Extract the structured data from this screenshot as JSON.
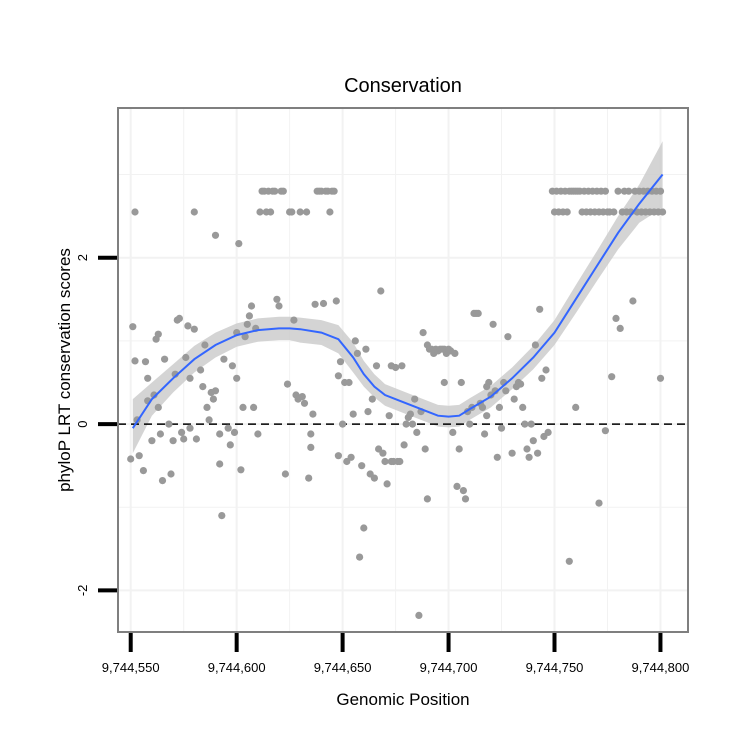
{
  "chart_data": {
    "type": "scatter",
    "title": "Conservation",
    "xlabel": "Genomic Position",
    "ylabel": "phyloP LRT conservation scores",
    "xlim": [
      9744544,
      9744813
    ],
    "ylim": [
      -2.5,
      3.8
    ],
    "x_ticks": [
      9744550,
      9744600,
      9744650,
      9744700,
      9744750,
      9744800
    ],
    "x_tick_labels": [
      "9,744,550",
      "9,744,600",
      "9,744,650",
      "9,744,700",
      "9,744,750",
      "9,744,800"
    ],
    "y_ticks": [
      -2,
      0,
      2
    ],
    "y_tick_labels": [
      "-2",
      "0",
      "2"
    ],
    "reference_line": {
      "y": 0,
      "style": "dashed"
    },
    "grid": true,
    "colors": {
      "points": "#999999",
      "smooth": "#3366ff",
      "ribbon": "#cccccc",
      "grid": "#f2f2f2",
      "panel_border": "#7f7f7f"
    },
    "points": [
      [
        9744550,
        -0.42
      ],
      [
        9744551,
        1.17
      ],
      [
        9744552,
        0.76
      ],
      [
        9744552,
        2.55
      ],
      [
        9744553,
        0.05
      ],
      [
        9744554,
        -0.38
      ],
      [
        9744556,
        -0.56
      ],
      [
        9744557,
        0.75
      ],
      [
        9744558,
        0.28
      ],
      [
        9744558,
        0.55
      ],
      [
        9744560,
        -0.2
      ],
      [
        9744561,
        0.35
      ],
      [
        9744562,
        1.02
      ],
      [
        9744563,
        1.08
      ],
      [
        9744563,
        0.2
      ],
      [
        9744564,
        -0.12
      ],
      [
        9744565,
        -0.68
      ],
      [
        9744566,
        0.78
      ],
      [
        9744568,
        0.0
      ],
      [
        9744569,
        -0.6
      ],
      [
        9744570,
        -0.2
      ],
      [
        9744571,
        0.6
      ],
      [
        9744572,
        1.25
      ],
      [
        9744573,
        1.27
      ],
      [
        9744574,
        -0.1
      ],
      [
        9744575,
        -0.18
      ],
      [
        9744576,
        0.8
      ],
      [
        9744577,
        1.18
      ],
      [
        9744578,
        -0.05
      ],
      [
        9744578,
        0.55
      ],
      [
        9744580,
        1.14
      ],
      [
        9744580,
        2.55
      ],
      [
        9744581,
        -0.18
      ],
      [
        9744583,
        0.65
      ],
      [
        9744584,
        0.45
      ],
      [
        9744585,
        0.95
      ],
      [
        9744586,
        0.2
      ],
      [
        9744587,
        0.05
      ],
      [
        9744588,
        0.38
      ],
      [
        9744589,
        0.3
      ],
      [
        9744590,
        0.4
      ],
      [
        9744590,
        2.27
      ],
      [
        9744592,
        -0.12
      ],
      [
        9744592,
        -0.48
      ],
      [
        9744593,
        -1.1
      ],
      [
        9744594,
        0.78
      ],
      [
        9744596,
        -0.05
      ],
      [
        9744597,
        -0.25
      ],
      [
        9744598,
        0.7
      ],
      [
        9744599,
        -0.1
      ],
      [
        9744600,
        0.55
      ],
      [
        9744600,
        1.1
      ],
      [
        9744601,
        2.17
      ],
      [
        9744602,
        -0.55
      ],
      [
        9744603,
        0.2
      ],
      [
        9744604,
        1.05
      ],
      [
        9744605,
        1.2
      ],
      [
        9744606,
        1.3
      ],
      [
        9744607,
        1.42
      ],
      [
        9744608,
        0.2
      ],
      [
        9744609,
        1.15
      ],
      [
        9744610,
        -0.12
      ],
      [
        9744611,
        2.55
      ],
      [
        9744612,
        2.8
      ],
      [
        9744613,
        2.8
      ],
      [
        9744614,
        2.55
      ],
      [
        9744615,
        2.8
      ],
      [
        9744616,
        2.55
      ],
      [
        9744617,
        2.8
      ],
      [
        9744618,
        2.8
      ],
      [
        9744619,
        1.5
      ],
      [
        9744620,
        1.42
      ],
      [
        9744621,
        2.8
      ],
      [
        9744622,
        2.8
      ],
      [
        9744623,
        -0.6
      ],
      [
        9744624,
        0.48
      ],
      [
        9744625,
        2.55
      ],
      [
        9744626,
        2.55
      ],
      [
        9744627,
        1.25
      ],
      [
        9744628,
        0.35
      ],
      [
        9744629,
        0.3
      ],
      [
        9744630,
        2.55
      ],
      [
        9744631,
        0.33
      ],
      [
        9744632,
        0.25
      ],
      [
        9744633,
        2.55
      ],
      [
        9744634,
        -0.65
      ],
      [
        9744635,
        -0.28
      ],
      [
        9744635,
        -0.12
      ],
      [
        9744636,
        0.12
      ],
      [
        9744637,
        1.44
      ],
      [
        9744638,
        2.8
      ],
      [
        9744639,
        2.8
      ],
      [
        9744640,
        2.8
      ],
      [
        9744641,
        1.45
      ],
      [
        9744642,
        2.8
      ],
      [
        9744643,
        2.8
      ],
      [
        9744644,
        2.55
      ],
      [
        9744645,
        2.8
      ],
      [
        9744646,
        2.8
      ],
      [
        9744647,
        1.48
      ],
      [
        9744648,
        0.58
      ],
      [
        9744648,
        -0.38
      ],
      [
        9744649,
        0.75
      ],
      [
        9744650,
        0.0
      ],
      [
        9744651,
        0.5
      ],
      [
        9744652,
        -0.45
      ],
      [
        9744653,
        0.5
      ],
      [
        9744654,
        -0.4
      ],
      [
        9744655,
        0.12
      ],
      [
        9744656,
        1.0
      ],
      [
        9744657,
        0.85
      ],
      [
        9744658,
        -1.6
      ],
      [
        9744659,
        -0.5
      ],
      [
        9744660,
        -1.25
      ],
      [
        9744661,
        0.9
      ],
      [
        9744662,
        0.15
      ],
      [
        9744663,
        -0.6
      ],
      [
        9744664,
        0.3
      ],
      [
        9744665,
        -0.65
      ],
      [
        9744666,
        0.7
      ],
      [
        9744667,
        -0.3
      ],
      [
        9744668,
        1.6
      ],
      [
        9744669,
        -0.35
      ],
      [
        9744670,
        -0.45
      ],
      [
        9744671,
        -0.72
      ],
      [
        9744672,
        0.1
      ],
      [
        9744673,
        0.7
      ],
      [
        9744673,
        -0.45
      ],
      [
        9744674,
        -0.45
      ],
      [
        9744675,
        0.68
      ],
      [
        9744676,
        -0.45
      ],
      [
        9744677,
        -0.45
      ],
      [
        9744678,
        0.7
      ],
      [
        9744679,
        -0.25
      ],
      [
        9744680,
        0.0
      ],
      [
        9744681,
        0.08
      ],
      [
        9744682,
        0.12
      ],
      [
        9744683,
        0.0
      ],
      [
        9744684,
        0.3
      ],
      [
        9744685,
        -0.1
      ],
      [
        9744686,
        -2.3
      ],
      [
        9744687,
        0.15
      ],
      [
        9744688,
        1.1
      ],
      [
        9744689,
        -0.3
      ],
      [
        9744690,
        -0.9
      ],
      [
        9744690,
        0.95
      ],
      [
        9744691,
        0.9
      ],
      [
        9744692,
        0.9
      ],
      [
        9744693,
        0.85
      ],
      [
        9744694,
        0.9
      ],
      [
        9744695,
        0.88
      ],
      [
        9744696,
        0.9
      ],
      [
        9744697,
        0.9
      ],
      [
        9744698,
        0.5
      ],
      [
        9744698,
        0.9
      ],
      [
        9744699,
        0.85
      ],
      [
        9744700,
        0.9
      ],
      [
        9744701,
        0.88
      ],
      [
        9744702,
        -0.1
      ],
      [
        9744703,
        0.85
      ],
      [
        9744704,
        -0.75
      ],
      [
        9744705,
        -0.3
      ],
      [
        9744706,
        0.5
      ],
      [
        9744707,
        -0.8
      ],
      [
        9744708,
        -0.9
      ],
      [
        9744709,
        0.15
      ],
      [
        9744710,
        0.0
      ],
      [
        9744711,
        0.2
      ],
      [
        9744712,
        1.33
      ],
      [
        9744713,
        1.33
      ],
      [
        9744714,
        1.33
      ],
      [
        9744715,
        0.25
      ],
      [
        9744716,
        0.2
      ],
      [
        9744717,
        -0.12
      ],
      [
        9744718,
        0.1
      ],
      [
        9744718,
        0.45
      ],
      [
        9744719,
        0.5
      ],
      [
        9744720,
        0.35
      ],
      [
        9744721,
        1.2
      ],
      [
        9744722,
        0.4
      ],
      [
        9744723,
        -0.4
      ],
      [
        9744724,
        0.2
      ],
      [
        9744725,
        -0.05
      ],
      [
        9744726,
        0.5
      ],
      [
        9744727,
        0.4
      ],
      [
        9744728,
        1.05
      ],
      [
        9744730,
        -0.35
      ],
      [
        9744731,
        0.3
      ],
      [
        9744732,
        0.45
      ],
      [
        9744733,
        0.5
      ],
      [
        9744734,
        0.48
      ],
      [
        9744735,
        0.2
      ],
      [
        9744736,
        0.0
      ],
      [
        9744737,
        -0.3
      ],
      [
        9744738,
        -0.4
      ],
      [
        9744739,
        0.0
      ],
      [
        9744740,
        -0.2
      ],
      [
        9744741,
        0.95
      ],
      [
        9744742,
        -0.35
      ],
      [
        9744743,
        1.38
      ],
      [
        9744744,
        0.55
      ],
      [
        9744745,
        -0.15
      ],
      [
        9744746,
        0.65
      ],
      [
        9744747,
        -0.1
      ],
      [
        9744749,
        2.8
      ],
      [
        9744750,
        2.55
      ],
      [
        9744751,
        2.8
      ],
      [
        9744752,
        2.55
      ],
      [
        9744753,
        2.8
      ],
      [
        9744754,
        2.55
      ],
      [
        9744755,
        2.8
      ],
      [
        9744756,
        2.55
      ],
      [
        9744757,
        -1.65
      ],
      [
        9744757,
        2.8
      ],
      [
        9744758,
        2.8
      ],
      [
        9744759,
        2.8
      ],
      [
        9744760,
        0.2
      ],
      [
        9744760,
        2.8
      ],
      [
        9744761,
        2.8
      ],
      [
        9744762,
        2.8
      ],
      [
        9744763,
        2.55
      ],
      [
        9744764,
        2.8
      ],
      [
        9744765,
        2.55
      ],
      [
        9744766,
        2.8
      ],
      [
        9744767,
        2.55
      ],
      [
        9744768,
        2.8
      ],
      [
        9744769,
        2.55
      ],
      [
        9744770,
        2.8
      ],
      [
        9744771,
        -0.95
      ],
      [
        9744771,
        2.55
      ],
      [
        9744772,
        2.8
      ],
      [
        9744773,
        2.55
      ],
      [
        9744774,
        -0.08
      ],
      [
        9744774,
        2.8
      ],
      [
        9744775,
        2.55
      ],
      [
        9744776,
        2.55
      ],
      [
        9744777,
        0.57
      ],
      [
        9744778,
        2.55
      ],
      [
        9744779,
        1.27
      ],
      [
        9744780,
        2.8
      ],
      [
        9744781,
        1.15
      ],
      [
        9744782,
        2.55
      ],
      [
        9744783,
        2.8
      ],
      [
        9744784,
        2.55
      ],
      [
        9744785,
        2.8
      ],
      [
        9744786,
        2.55
      ],
      [
        9744787,
        1.48
      ],
      [
        9744788,
        2.8
      ],
      [
        9744789,
        2.55
      ],
      [
        9744790,
        2.8
      ],
      [
        9744791,
        2.55
      ],
      [
        9744792,
        2.8
      ],
      [
        9744793,
        2.55
      ],
      [
        9744794,
        2.8
      ],
      [
        9744795,
        2.55
      ],
      [
        9744796,
        2.8
      ],
      [
        9744797,
        2.55
      ],
      [
        9744798,
        2.8
      ],
      [
        9744799,
        2.55
      ],
      [
        9744800,
        0.55
      ],
      [
        9744800,
        2.8
      ],
      [
        9744801,
        2.55
      ]
    ],
    "smooth": {
      "x": [
        9744551,
        9744560,
        9744570,
        9744580,
        9744590,
        9744600,
        9744610,
        9744620,
        9744625,
        9744630,
        9744640,
        9744648,
        9744655,
        9744660,
        9744665,
        9744670,
        9744680,
        9744690,
        9744695,
        9744700,
        9744705,
        9744710,
        9744720,
        9744730,
        9744740,
        9744750,
        9744760,
        9744770,
        9744780,
        9744790,
        9744801
      ],
      "y": [
        -0.05,
        0.3,
        0.55,
        0.78,
        0.95,
        1.07,
        1.13,
        1.15,
        1.15,
        1.14,
        1.1,
        1.02,
        0.8,
        0.6,
        0.45,
        0.35,
        0.25,
        0.15,
        0.1,
        0.09,
        0.1,
        0.18,
        0.33,
        0.55,
        0.8,
        1.1,
        1.5,
        1.9,
        2.3,
        2.65,
        3.0
      ],
      "lower": [
        -0.35,
        0.1,
        0.38,
        0.62,
        0.8,
        0.93,
        0.99,
        1.01,
        1.01,
        0.98,
        0.95,
        0.85,
        0.62,
        0.45,
        0.32,
        0.22,
        0.12,
        0.02,
        -0.03,
        -0.04,
        -0.03,
        0.05,
        0.2,
        0.42,
        0.66,
        0.95,
        1.33,
        1.72,
        2.1,
        2.42,
        2.6
      ],
      "upper": [
        0.3,
        0.5,
        0.72,
        0.94,
        1.1,
        1.21,
        1.27,
        1.29,
        1.29,
        1.28,
        1.25,
        1.19,
        0.98,
        0.76,
        0.6,
        0.48,
        0.38,
        0.28,
        0.23,
        0.22,
        0.23,
        0.31,
        0.46,
        0.68,
        0.94,
        1.25,
        1.67,
        2.08,
        2.5,
        2.88,
        3.4
      ]
    }
  }
}
